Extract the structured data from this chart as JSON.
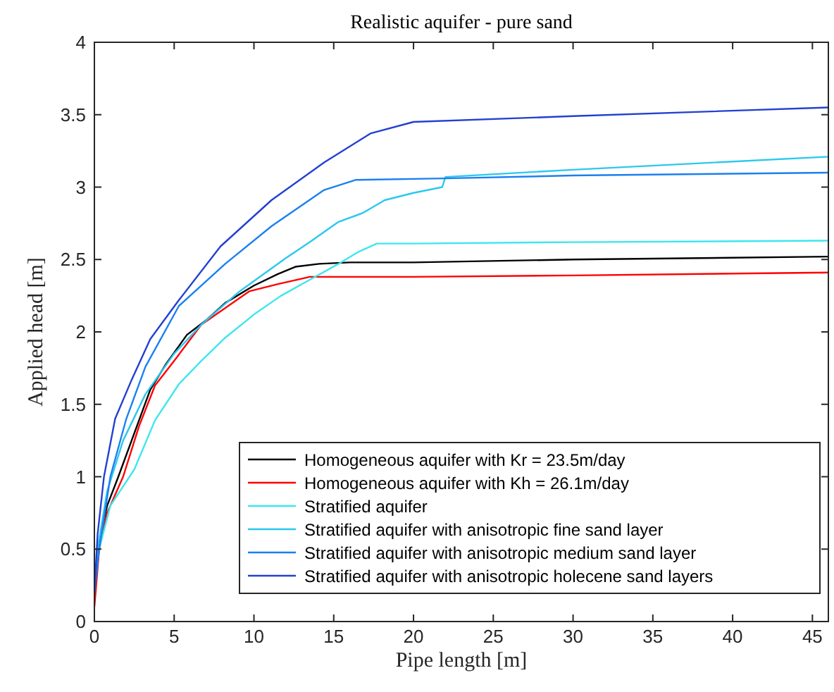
{
  "chart_data": {
    "type": "line",
    "title": "Realistic aquifer - pure sand",
    "xlabel": "Pipe length [m]",
    "ylabel": "Applied head [m]",
    "xlim": [
      0,
      46
    ],
    "ylim": [
      0,
      4
    ],
    "xticks": [
      0,
      5,
      10,
      15,
      20,
      25,
      30,
      35,
      40,
      45
    ],
    "yticks": [
      0,
      0.5,
      1,
      1.5,
      2,
      2.5,
      3,
      3.5,
      4
    ],
    "grid": false,
    "legend": "bottom right",
    "marker": "none",
    "line_style": "solid",
    "series": [
      {
        "name": "Homogeneous aquifer with Kr = 23.5m/day",
        "color": "#000000",
        "x": [
          0,
          0.3,
          0.8,
          1.5,
          2.5,
          3.5,
          4.5,
          5.8,
          7,
          8.2,
          10,
          11.5,
          12.6,
          14.1,
          16,
          20,
          30,
          46
        ],
        "values": [
          0.15,
          0.55,
          0.8,
          1.0,
          1.3,
          1.6,
          1.78,
          1.98,
          2.08,
          2.2,
          2.32,
          2.4,
          2.45,
          2.47,
          2.48,
          2.48,
          2.5,
          2.52
        ]
      },
      {
        "name": "Homogeneous aquifer with Kh = 26.1m/day",
        "color": "#ff0000",
        "x": [
          0,
          0.3,
          0.8,
          1.8,
          2.8,
          3.8,
          5,
          6.7,
          8,
          9.7,
          11.5,
          13.5,
          20,
          30,
          46
        ],
        "values": [
          0.1,
          0.5,
          0.75,
          1.0,
          1.35,
          1.63,
          1.8,
          2.05,
          2.15,
          2.28,
          2.33,
          2.38,
          2.38,
          2.39,
          2.41
        ]
      },
      {
        "name": "Stratified aquifer",
        "color": "#3ee6ee",
        "x": [
          0.3,
          1,
          2.5,
          3.8,
          5.3,
          6.7,
          8.2,
          10,
          11.7,
          13.5,
          15.3,
          16.5,
          17.7,
          20,
          30,
          46
        ],
        "values": [
          0.5,
          0.8,
          1.05,
          1.39,
          1.64,
          1.8,
          1.96,
          2.12,
          2.25,
          2.36,
          2.47,
          2.55,
          2.61,
          2.61,
          2.62,
          2.63
        ]
      },
      {
        "name": "Stratified aquifer with anisotropic fine sand layer",
        "color": "#2bc8f0",
        "x": [
          0,
          0.2,
          0.8,
          1.8,
          3.2,
          5,
          6.7,
          9.1,
          12,
          13.5,
          15.3,
          16.8,
          18.2,
          20,
          21.8,
          22,
          30,
          46
        ],
        "values": [
          0.2,
          0.5,
          0.9,
          1.25,
          1.57,
          1.85,
          2.05,
          2.28,
          2.51,
          2.62,
          2.76,
          2.82,
          2.91,
          2.96,
          3.0,
          3.07,
          3.12,
          3.21
        ]
      },
      {
        "name": "Stratified aquifer with anisotropic medium sand layer",
        "color": "#1a80f0",
        "x": [
          0,
          0.3,
          1,
          2,
          3.2,
          5.3,
          8.2,
          11.1,
          14.4,
          16.4,
          22,
          30,
          46
        ],
        "values": [
          0.2,
          0.5,
          1.0,
          1.4,
          1.76,
          2.18,
          2.47,
          2.73,
          2.98,
          3.05,
          3.06,
          3.08,
          3.1
        ]
      },
      {
        "name": "Stratified aquifer with anisotropic holecene sand layers",
        "color": "#2440d0",
        "x": [
          0,
          0.2,
          0.6,
          1.3,
          2.3,
          3.5,
          5.3,
          7.9,
          11.1,
          14.4,
          17.3,
          20,
          30,
          46
        ],
        "values": [
          0.2,
          0.6,
          1.0,
          1.4,
          1.66,
          1.95,
          2.22,
          2.59,
          2.91,
          3.17,
          3.37,
          3.45,
          3.49,
          3.55
        ]
      }
    ]
  }
}
